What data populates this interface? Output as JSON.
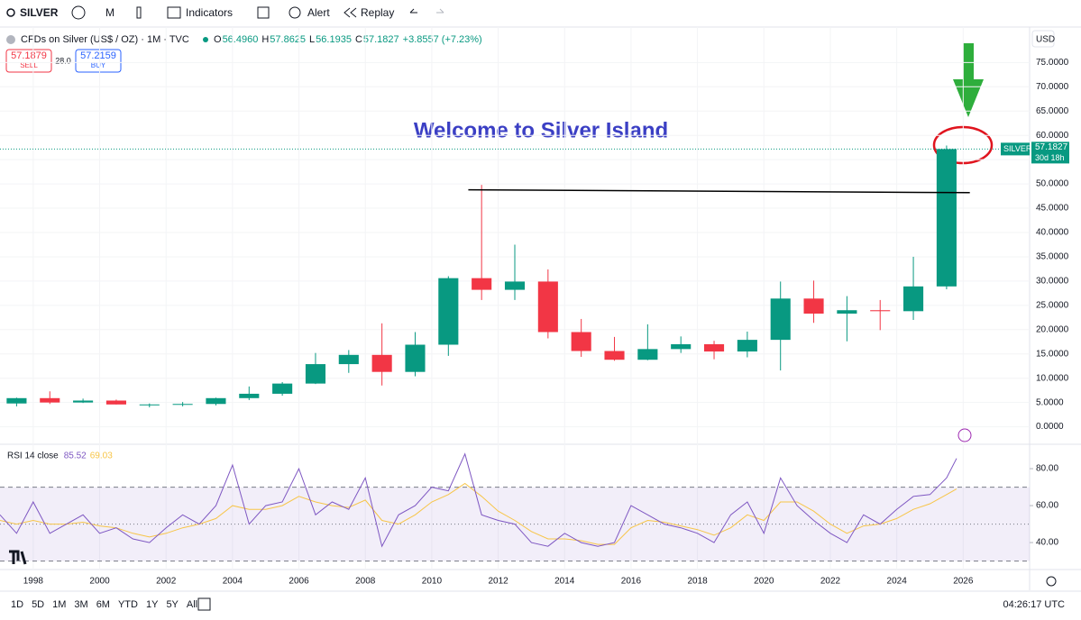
{
  "toolbar": {
    "symbol": "SILVER",
    "interval": "M",
    "indicators": "Indicators",
    "alert": "Alert",
    "replay": "Replay"
  },
  "legend": {
    "title": "CFDs on Silver (US$ / OZ) · 1M · TVC",
    "items": [
      {
        "key": "O",
        "value": "56.4960"
      },
      {
        "key": "H",
        "value": "57.8625"
      },
      {
        "key": "L",
        "value": "56.1935"
      },
      {
        "key": "C",
        "value": "57.1827"
      }
    ],
    "change": "+3.8557 (+7.23%)"
  },
  "trade": {
    "sell_price": "57.1879",
    "sell": "SELL",
    "spread": "28.0",
    "buy_price": "57.2159",
    "buy": "BUY"
  },
  "price_scale": {
    "currency": "USD",
    "symbol_tag": "SILVER",
    "countdown": "30d 18h"
  },
  "timeframes": [
    "1D",
    "5D",
    "1M",
    "3M",
    "6M",
    "YTD",
    "1Y",
    "5Y",
    "All"
  ],
  "clock": "04:26:17 UTC",
  "chart_data": {
    "type": "candlestick",
    "annotation": "Welcome to Silver Island",
    "x": [
      1997.5,
      1998.5,
      1999.5,
      2000.5,
      2001.5,
      2002.5,
      2003.5,
      2004.5,
      2005.5,
      2006.5,
      2007.5,
      2008.5,
      2009.5,
      2010.5,
      2011.5,
      2012.5,
      2013.5,
      2014.5,
      2015.5,
      2016.5,
      2017.5,
      2018.5,
      2019.5,
      2020.5,
      2021.5,
      2022.5,
      2023.5,
      2024.5,
      2025.5
    ],
    "open": [
      4.8,
      5.9,
      5.0,
      5.4,
      4.6,
      4.6,
      4.7,
      5.9,
      6.8,
      8.9,
      12.9,
      14.8,
      11.3,
      16.9,
      30.6,
      28.2,
      29.9,
      19.5,
      15.6,
      13.8,
      16.0,
      17.0,
      15.5,
      17.9,
      26.4,
      23.3,
      24.0,
      23.8,
      28.9
    ],
    "high": [
      6.0,
      7.3,
      5.8,
      5.6,
      4.8,
      5.1,
      6.0,
      8.3,
      9.2,
      15.2,
      15.8,
      21.3,
      19.5,
      31.0,
      49.8,
      37.5,
      32.4,
      22.2,
      18.5,
      21.1,
      18.6,
      17.7,
      19.6,
      29.9,
      30.1,
      26.9,
      26.1,
      35.0,
      57.9
    ],
    "low": [
      4.2,
      4.7,
      4.9,
      4.6,
      4.0,
      4.2,
      4.4,
      5.5,
      6.4,
      8.8,
      11.1,
      8.5,
      10.4,
      14.6,
      26.1,
      26.1,
      18.2,
      14.4,
      13.6,
      13.7,
      15.2,
      13.9,
      14.3,
      11.6,
      21.4,
      17.6,
      19.9,
      22.0,
      28.3
    ],
    "close": [
      5.9,
      5.0,
      5.4,
      4.6,
      4.6,
      4.7,
      5.9,
      6.8,
      8.9,
      12.9,
      14.8,
      11.3,
      16.9,
      30.6,
      28.2,
      29.9,
      19.5,
      15.6,
      13.8,
      16.0,
      17.0,
      15.5,
      17.9,
      26.4,
      23.3,
      24.0,
      23.8,
      28.9,
      57.1827
    ],
    "up_color": "#089981",
    "down_color": "#f23645",
    "xlim": [
      1997.0,
      2028.0
    ],
    "xticks": [
      1998,
      2000,
      2002,
      2004,
      2006,
      2008,
      2010,
      2012,
      2014,
      2016,
      2018,
      2020,
      2022,
      2024,
      2026
    ],
    "ylim": [
      -3.6,
      82.3
    ],
    "yticks": [
      {
        "value": 0,
        "label": "0.0000"
      },
      {
        "value": 5,
        "label": "5.0000"
      },
      {
        "value": 10,
        "label": "10.0000"
      },
      {
        "value": 15,
        "label": "15.0000"
      },
      {
        "value": 20,
        "label": "20.0000"
      },
      {
        "value": 25,
        "label": "25.0000"
      },
      {
        "value": 30,
        "label": "30.0000"
      },
      {
        "value": 35,
        "label": "35.0000"
      },
      {
        "value": 40,
        "label": "40.0000"
      },
      {
        "value": 45,
        "label": "45.0000"
      },
      {
        "value": 50,
        "label": "50.0000"
      },
      {
        "value": 55,
        "label": "55.0000"
      },
      {
        "value": 60,
        "label": "60.0000"
      },
      {
        "value": 65,
        "label": "65.0000"
      },
      {
        "value": 70,
        "label": "70.0000"
      },
      {
        "value": 75,
        "label": "75.0000"
      }
    ],
    "grid": true,
    "resistance": {
      "x": [
        2011.1,
        2026.2
      ],
      "y": [
        48.8,
        48.2
      ],
      "color": "#000000"
    },
    "rsi": {
      "title": "RSI 14 close",
      "color": "#7e57c2",
      "ma_color": "#f7c548",
      "x": [
        1997,
        1997.5,
        1998,
        1998.5,
        1999,
        1999.5,
        2000,
        2000.5,
        2001,
        2001.5,
        2002,
        2002.5,
        2003,
        2003.5,
        2004,
        2004.5,
        2005,
        2005.5,
        2006,
        2006.5,
        2007,
        2007.5,
        2008,
        2008.5,
        2009,
        2009.5,
        2010,
        2010.5,
        2011,
        2011.5,
        2012,
        2012.5,
        2013,
        2013.5,
        2014,
        2014.5,
        2015,
        2015.5,
        2016,
        2016.5,
        2017,
        2017.5,
        2018,
        2018.5,
        2019,
        2019.5,
        2020,
        2020.5,
        2021,
        2021.5,
        2022,
        2022.5,
        2023,
        2023.5,
        2024,
        2024.5,
        2025,
        2025.5,
        2025.8
      ],
      "values": [
        55,
        45,
        62,
        45,
        50,
        55,
        45,
        48,
        42,
        40,
        48,
        55,
        50,
        60,
        82,
        50,
        60,
        62,
        80,
        55,
        62,
        58,
        75,
        38,
        55,
        60,
        70,
        68,
        88,
        55,
        52,
        50,
        40,
        38,
        45,
        40,
        38,
        40,
        60,
        55,
        50,
        48,
        45,
        40,
        55,
        62,
        45,
        75,
        60,
        52,
        45,
        40,
        55,
        50,
        58,
        65,
        66,
        75,
        85.52
      ],
      "ma_values": [
        52,
        50,
        52,
        50,
        50,
        51,
        49,
        48,
        45,
        43,
        45,
        48,
        50,
        53,
        60,
        58,
        58,
        60,
        65,
        62,
        60,
        59,
        63,
        52,
        50,
        55,
        62,
        66,
        72,
        65,
        57,
        52,
        46,
        42,
        42,
        41,
        39,
        39,
        48,
        52,
        51,
        49,
        47,
        44,
        48,
        55,
        52,
        62,
        62,
        57,
        50,
        45,
        49,
        50,
        53,
        58,
        61,
        66,
        69.03
      ],
      "bands": [
        30,
        50,
        70
      ],
      "ylim": [
        25.4,
        93.2
      ],
      "yticks": [
        {
          "value": 40,
          "label": "40.00"
        },
        {
          "value": 60,
          "label": "60.00"
        },
        {
          "value": 80,
          "label": "80.00"
        }
      ]
    }
  }
}
